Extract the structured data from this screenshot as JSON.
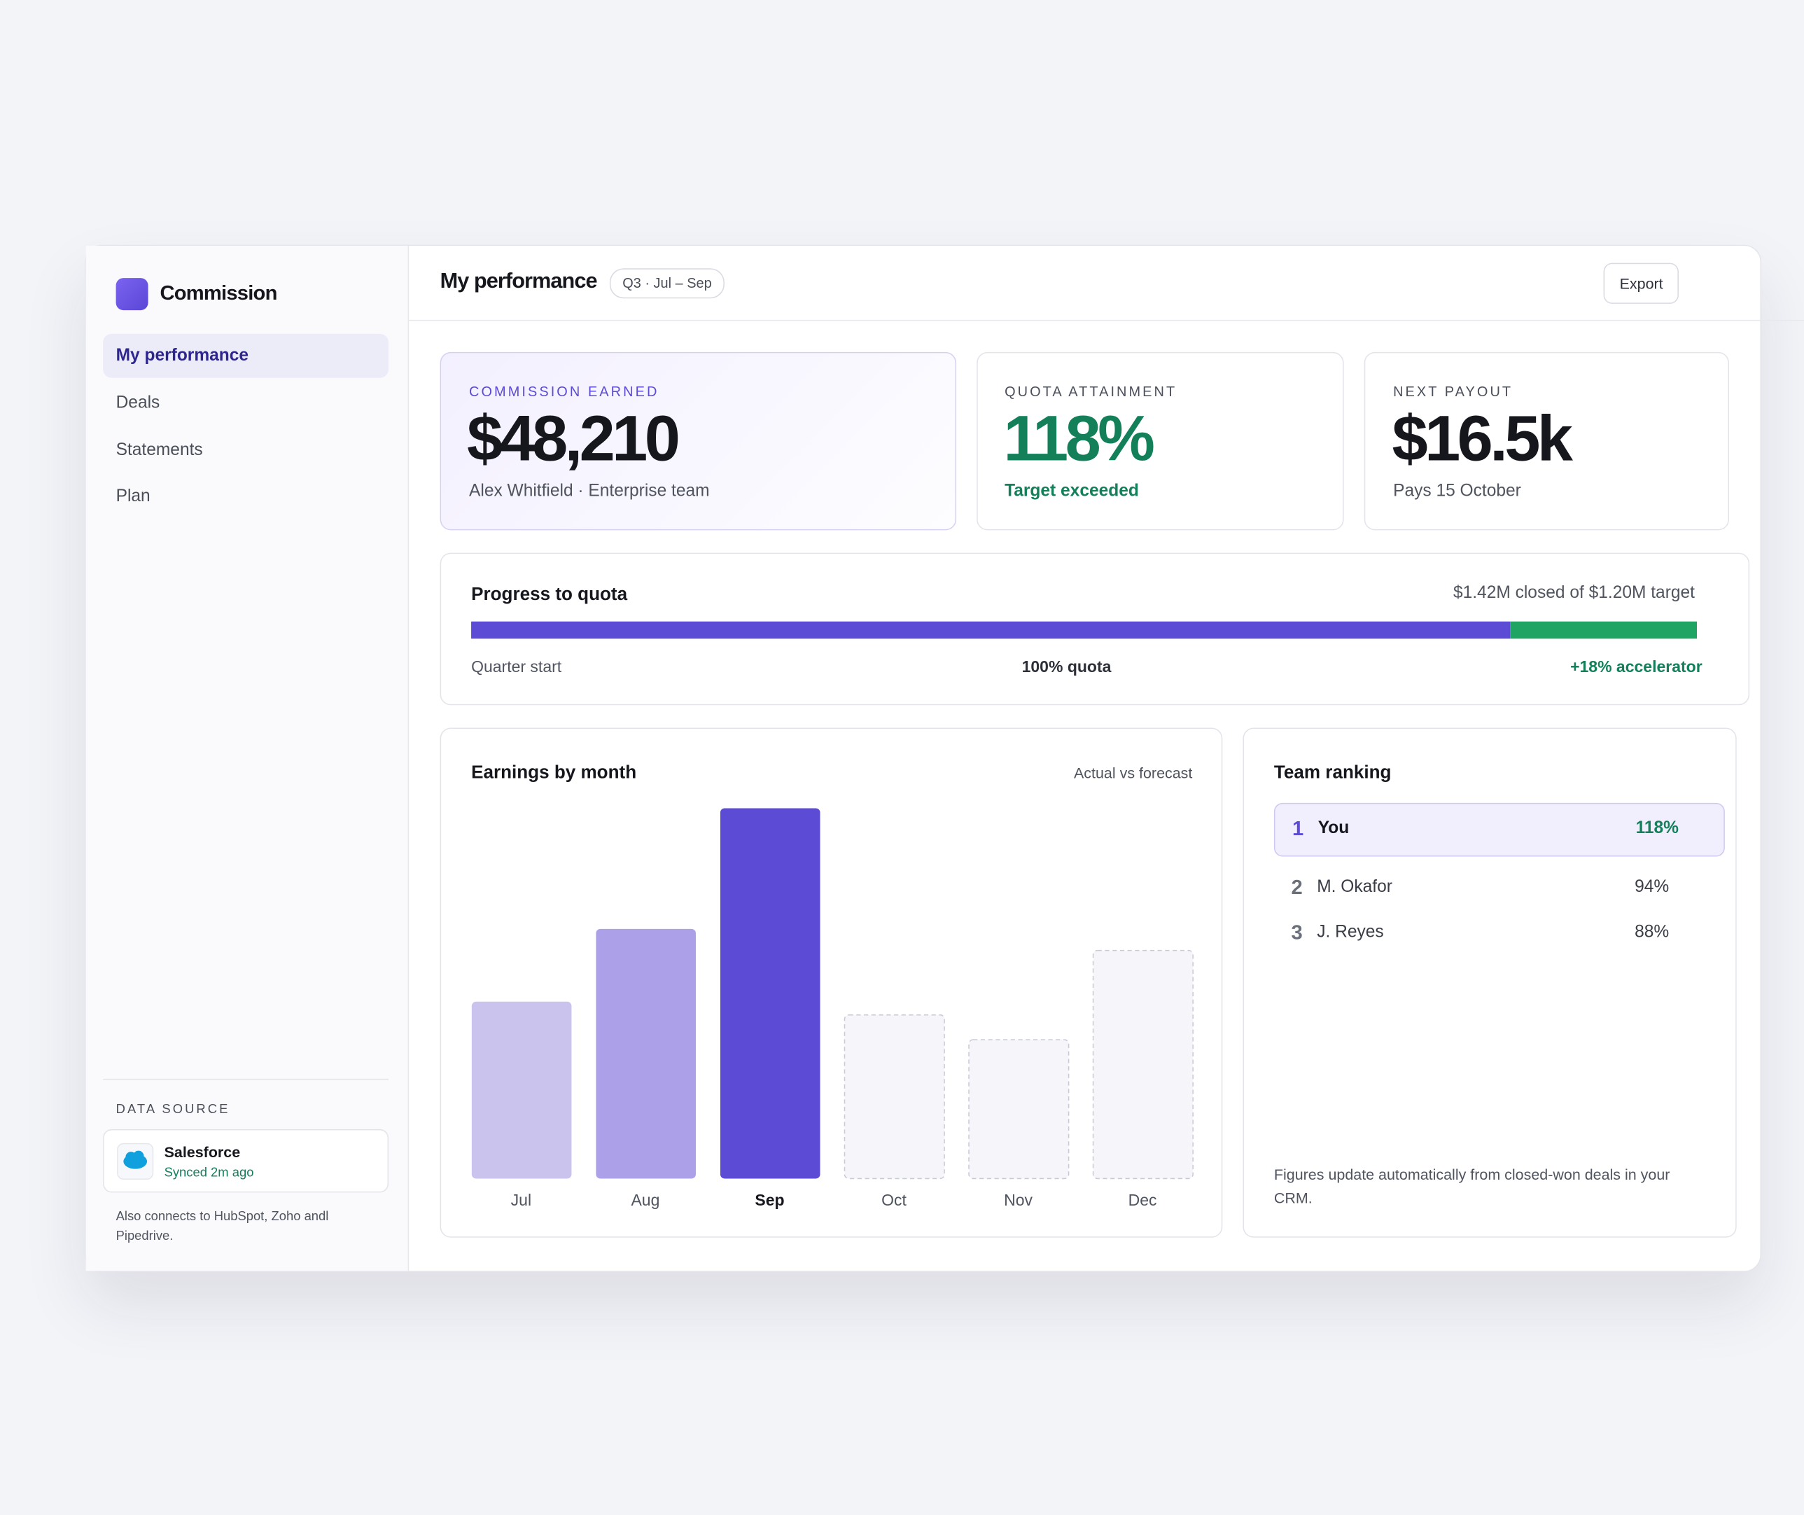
{
  "sidebar": {
    "brand": "Commission",
    "nav": [
      "My performance",
      "Deals",
      "Statements",
      "Plan"
    ],
    "data_source_label": "DATA SOURCE",
    "source_name": "Salesforce",
    "source_status": "Synced 2m ago",
    "source_note": "Also connects to HubSpot, Zoho andl Pipedrive."
  },
  "header": {
    "title": "My performance",
    "period": "Q3 · Jul – Sep",
    "export": "Export"
  },
  "kpis": [
    {
      "label": "COMMISSION EARNED",
      "value": "$48,210",
      "note": "Alex Whitfield · Enterprise team"
    },
    {
      "label": "QUOTA ATTAINMENT",
      "value": "118%",
      "note": "Target exceeded"
    },
    {
      "label": "NEXT PAYOUT",
      "value": "$16.5k",
      "note": "Pays 15 October"
    }
  ],
  "progress": {
    "title": "Progress to quota",
    "summary": "$1.42M closed of $1.20M target",
    "segments": [
      100,
      18
    ],
    "colors": [
      "#5b4bd5",
      "#1fa463"
    ],
    "start_label": "Quarter start",
    "mid_label": "100% quota",
    "end_label": "+18% accelerator"
  },
  "chart_data": {
    "type": "bar",
    "title": "Earnings by month",
    "subtitle": "Actual vs forecast",
    "categories": [
      "Jul",
      "Aug",
      "Sep",
      "Oct",
      "Nov",
      "Dec"
    ],
    "values": [
      10700,
      15100,
      22400,
      9900,
      8400,
      13800
    ],
    "colors": [
      "#c9c3ee",
      "#aca1e8",
      "#5b4bd5",
      "#f6f6fa",
      "#f6f6fa",
      "#f6f6fa"
    ],
    "forecast": [
      false,
      false,
      false,
      true,
      true,
      true
    ]
  },
  "ranking": {
    "title": "Team ranking",
    "rows": [
      {
        "rank": 1,
        "name": "You",
        "value": "118%"
      },
      {
        "rank": 2,
        "name": "M. Okafor",
        "value": "94%"
      },
      {
        "rank": 3,
        "name": "J. Reyes",
        "value": "88%"
      }
    ],
    "footnote": "Figures update automatically from closed-won deals in your CRM."
  }
}
